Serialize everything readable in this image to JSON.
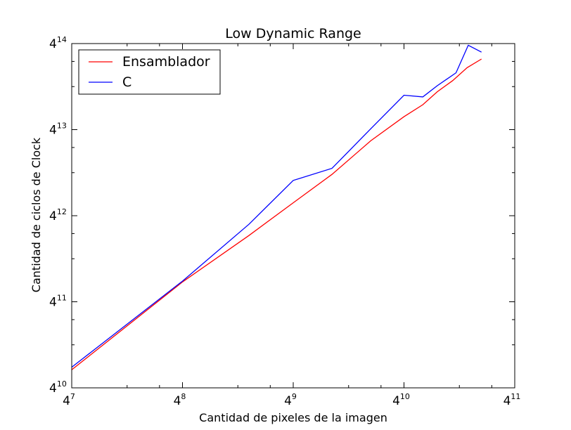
{
  "chart_data": {
    "type": "line",
    "title": "Low Dynamic Range",
    "xlabel": "Cantidad de pixeles de la imagen",
    "ylabel": "Cantidad de ciclos de Clock",
    "x_scale": "log4",
    "y_scale": "log4",
    "x_exponent_range": [
      7,
      11
    ],
    "y_exponent_range": [
      10,
      14
    ],
    "x_ticks": [
      {
        "base": "4",
        "exp": "7",
        "value": 7
      },
      {
        "base": "4",
        "exp": "8",
        "value": 8
      },
      {
        "base": "4",
        "exp": "9",
        "value": 9
      },
      {
        "base": "4",
        "exp": "10",
        "value": 10
      },
      {
        "base": "4",
        "exp": "11",
        "value": 11
      }
    ],
    "y_ticks": [
      {
        "base": "4",
        "exp": "10",
        "value": 10
      },
      {
        "base": "4",
        "exp": "11",
        "value": 11
      },
      {
        "base": "4",
        "exp": "12",
        "value": 12
      },
      {
        "base": "4",
        "exp": "13",
        "value": 13
      },
      {
        "base": "4",
        "exp": "14",
        "value": 14
      }
    ],
    "grid": false,
    "legend_position": "top-left",
    "series": [
      {
        "name": "Ensamblador",
        "color": "#ff0000",
        "x_log4": [
          7.0,
          8.0,
          8.6,
          9.0,
          9.35,
          9.7,
          10.0,
          10.17,
          10.3,
          10.44,
          10.57,
          10.7
        ],
        "y_log4": [
          10.21,
          11.23,
          11.77,
          12.15,
          12.48,
          12.87,
          13.15,
          13.29,
          13.44,
          13.57,
          13.72,
          13.82
        ]
      },
      {
        "name": "C",
        "color": "#0000ff",
        "x_log4": [
          7.0,
          8.0,
          8.6,
          9.0,
          9.35,
          9.7,
          10.0,
          10.17,
          10.3,
          10.47,
          10.58,
          10.7
        ],
        "y_log4": [
          10.24,
          11.24,
          11.9,
          12.41,
          12.55,
          13.01,
          13.4,
          13.38,
          13.51,
          13.66,
          13.98,
          13.9
        ]
      }
    ]
  }
}
